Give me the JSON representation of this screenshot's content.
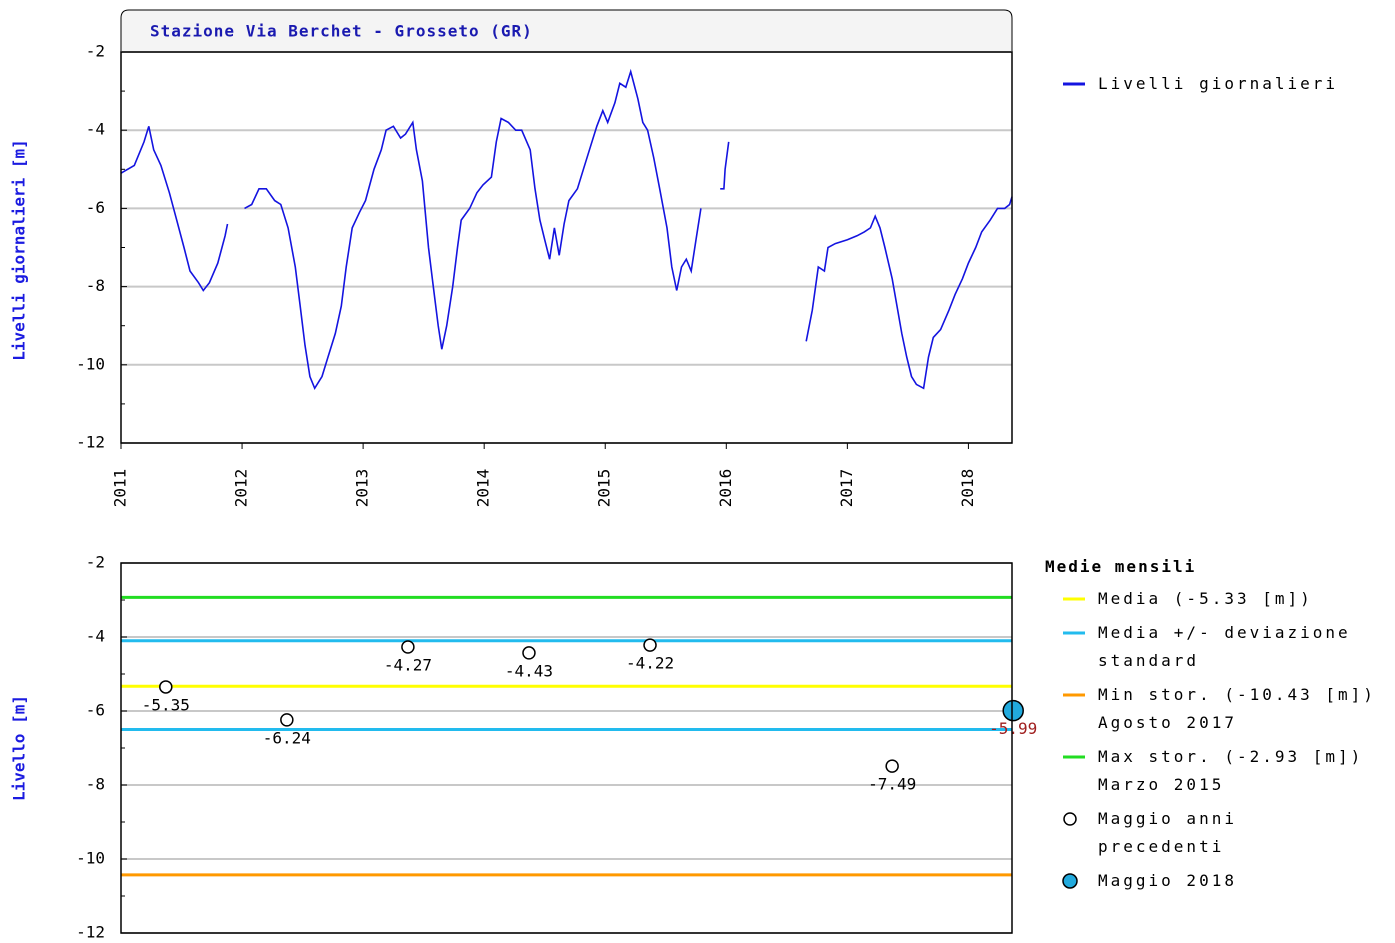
{
  "chart_data": [
    {
      "type": "line",
      "title": "Stazione Via Berchet - Grosseto (GR)",
      "y_label": "Livelli giornalieri [m]",
      "xlim": [
        2011,
        2018.36
      ],
      "xticks": [
        2011,
        2012,
        2013,
        2014,
        2015,
        2016,
        2017,
        2018
      ],
      "ylim": [
        -12,
        -2
      ],
      "yticks": [
        -12,
        -10,
        -8,
        -6,
        -4,
        -2
      ],
      "grid": true,
      "legend": "right",
      "series": [
        {
          "name": "Livelli giornalieri",
          "color": "#1414e0",
          "x": [
            2011.0,
            2011.11,
            2011.19,
            2011.23,
            2011.27,
            2011.33,
            2011.4,
            2011.46,
            2011.52,
            2011.57,
            2011.64,
            2011.68,
            2011.73,
            2011.8,
            2011.86,
            2011.88,
            null,
            2012.02,
            2012.08,
            2012.14,
            2012.2,
            2012.27,
            2012.32,
            2012.38,
            2012.44,
            2012.48,
            2012.52,
            2012.56,
            2012.6,
            2012.66,
            2012.71,
            2012.77,
            2012.82,
            2012.86,
            2012.91,
            2012.97,
            2013.02,
            2013.09,
            2013.15,
            2013.19,
            2013.25,
            2013.31,
            2013.35,
            2013.41,
            2013.44,
            2013.49,
            2013.54,
            2013.58,
            2013.62,
            2013.65,
            2013.69,
            2013.74,
            2013.78,
            2013.81,
            2013.88,
            2013.94,
            2013.99,
            2014.06,
            2014.1,
            2014.14,
            2014.2,
            2014.26,
            2014.31,
            2014.38,
            2014.42,
            2014.46,
            2014.5,
            2014.54,
            2014.58,
            2014.62,
            2014.66,
            2014.7,
            2014.77,
            2014.82,
            2014.88,
            2014.93,
            2014.98,
            2015.02,
            2015.08,
            2015.12,
            2015.17,
            2015.21,
            2015.27,
            2015.31,
            2015.35,
            2015.4,
            2015.45,
            2015.51,
            2015.55,
            2015.59,
            2015.63,
            2015.67,
            2015.71,
            2015.75,
            2015.79,
            null,
            2015.95,
            2015.98,
            2015.99,
            2016.02,
            null,
            2016.66,
            2016.71,
            2016.76,
            2016.81,
            2016.84,
            2016.9,
            2017.0,
            2017.08,
            2017.14,
            2017.19,
            2017.23,
            2017.27,
            2017.31,
            2017.37,
            2017.41,
            2017.45,
            2017.49,
            2017.53,
            2017.57,
            2017.63,
            2017.67,
            2017.71,
            2017.77,
            2017.84,
            2017.89,
            2017.95,
            2018.0,
            2018.06,
            2018.11,
            2018.18,
            2018.24,
            2018.3,
            2018.34,
            2018.36
          ],
          "values": [
            -5.1,
            -4.9,
            -4.3,
            -3.9,
            -4.5,
            -4.9,
            -5.6,
            -6.3,
            -7.0,
            -7.6,
            -7.9,
            -8.1,
            -7.9,
            -7.4,
            -6.7,
            -6.4,
            null,
            -6.0,
            -5.9,
            -5.5,
            -5.5,
            -5.8,
            -5.9,
            -6.5,
            -7.5,
            -8.5,
            -9.5,
            -10.3,
            -10.6,
            -10.3,
            -9.8,
            -9.2,
            -8.5,
            -7.5,
            -6.5,
            -6.1,
            -5.8,
            -5.0,
            -4.5,
            -4.0,
            -3.9,
            -4.2,
            -4.1,
            -3.8,
            -4.5,
            -5.3,
            -7.0,
            -8.0,
            -9.0,
            -9.6,
            -9.0,
            -8.0,
            -7.0,
            -6.3,
            -6.0,
            -5.6,
            -5.4,
            -5.2,
            -4.3,
            -3.7,
            -3.8,
            -4.0,
            -4.0,
            -4.5,
            -5.5,
            -6.3,
            -6.8,
            -7.3,
            -6.5,
            -7.2,
            -6.4,
            -5.8,
            -5.5,
            -5.0,
            -4.4,
            -3.9,
            -3.5,
            -3.8,
            -3.3,
            -2.8,
            -2.9,
            -2.5,
            -3.2,
            -3.8,
            -4.0,
            -4.7,
            -5.5,
            -6.5,
            -7.5,
            -8.1,
            -7.5,
            -7.3,
            -7.6,
            -6.8,
            -6.0,
            null,
            -5.5,
            -5.5,
            -5.0,
            -4.3,
            null,
            -9.4,
            -8.6,
            -7.5,
            -7.6,
            -7.0,
            -6.9,
            -6.8,
            -6.7,
            -6.6,
            -6.5,
            -6.2,
            -6.5,
            -7.0,
            -7.8,
            -8.5,
            -9.2,
            -9.8,
            -10.3,
            -10.5,
            -10.6,
            -9.8,
            -9.3,
            -9.1,
            -8.6,
            -8.2,
            -7.8,
            -7.4,
            -7.0,
            -6.6,
            -6.3,
            -6.0,
            -6.0,
            -5.9,
            -5.7
          ]
        }
      ]
    },
    {
      "type": "scatter",
      "title": "Medie mensili",
      "y_label": "Livello [m]",
      "xlim": [
        2011,
        2018.36
      ],
      "ylim": [
        -12,
        -2
      ],
      "yticks": [
        -12,
        -10,
        -8,
        -6,
        -4,
        -2
      ],
      "grid": true,
      "legend": "right",
      "lines": [
        {
          "name": "Media (-5.33 [m])",
          "color": "#ffff00",
          "values": [
            -5.33
          ]
        },
        {
          "name": "Media +/- deviazione standard",
          "color": "#22bbee",
          "values": [
            -4.1,
            -6.5
          ]
        },
        {
          "name": "Min stor. (-10.43 [m])",
          "note": "Agosto 2017",
          "color": "#ff9900",
          "values": [
            -10.43
          ]
        },
        {
          "name": "Max stor. (-2.93 [m])",
          "note": "Marzo 2015",
          "color": "#22dd22",
          "values": [
            -2.93
          ]
        }
      ],
      "series": [
        {
          "name": "Maggio anni precedenti",
          "color": "#ffffff",
          "label_color": "#000000",
          "x": [
            2011.37,
            2012.37,
            2013.37,
            2014.37,
            2015.37,
            2017.37
          ],
          "values": [
            -5.35,
            -6.24,
            -4.27,
            -4.43,
            -4.22,
            -7.49
          ]
        },
        {
          "name": "Maggio 2018",
          "color": "#22aadd",
          "label_color": "#a02020",
          "x": [
            2018.37
          ],
          "values": [
            -5.99
          ]
        }
      ]
    }
  ]
}
